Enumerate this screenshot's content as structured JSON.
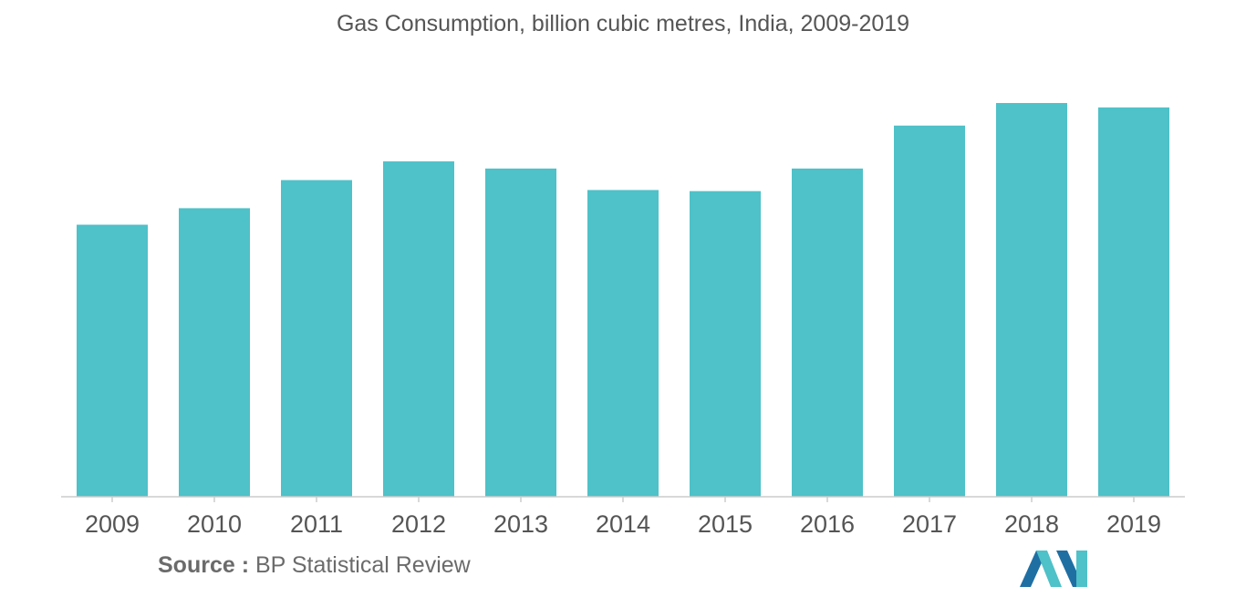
{
  "chart_data": {
    "type": "bar",
    "title": "Gas Consumption, billion cubic metres, India, 2009-2019",
    "categories": [
      "2009",
      "2010",
      "2011",
      "2012",
      "2013",
      "2014",
      "2015",
      "2016",
      "2017",
      "2018",
      "2019"
    ],
    "values": [
      49.4,
      52.4,
      57.5,
      60.9,
      59.6,
      55.7,
      55.5,
      59.6,
      67.4,
      71.5,
      70.7
    ],
    "xlabel": "",
    "ylabel": "",
    "ylim": [
      0,
      72
    ],
    "grid": false,
    "legend": "none",
    "bar_color": "#4fc1c8",
    "axis_color": "#cccccc",
    "tick_label_color": "#555555"
  },
  "source": {
    "label": "Source :",
    "text": "BP Statistical Review"
  },
  "logo": {
    "icon": "mordor-intelligence-logo",
    "colors": [
      "#1f6fa3",
      "#4fc1c8"
    ]
  }
}
